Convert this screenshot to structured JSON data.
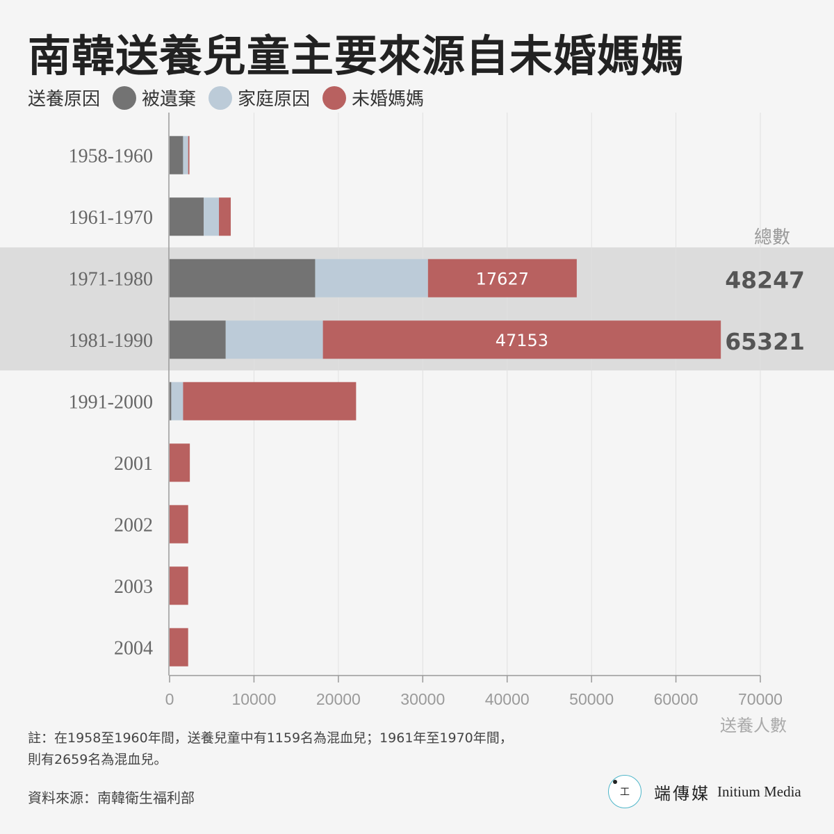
{
  "title": "南韓送養兒童主要來源自未婚媽媽",
  "legend": {
    "title": "送養原因",
    "items": [
      {
        "label": "被遺棄",
        "color": "#737373"
      },
      {
        "label": "家庭原因",
        "color": "#bccbd8"
      },
      {
        "label": "未婚媽媽",
        "color": "#b86160"
      }
    ]
  },
  "chart_data": {
    "type": "bar",
    "orientation": "horizontal",
    "stacked": true,
    "categories": [
      "1958-1960",
      "1961-1970",
      "1971-1980",
      "1981-1990",
      "1991-2000",
      "2001",
      "2002",
      "2003",
      "2004"
    ],
    "series": [
      {
        "name": "被遺棄",
        "color": "#737373",
        "values": [
          1600,
          4050,
          17250,
          6650,
          200,
          0,
          0,
          0,
          0
        ]
      },
      {
        "name": "家庭原因",
        "color": "#bccbd8",
        "values": [
          600,
          1800,
          13370,
          11518,
          1400,
          0,
          0,
          0,
          0
        ]
      },
      {
        "name": "未婚媽媽",
        "color": "#b86160",
        "values": [
          150,
          1400,
          17627,
          47153,
          20500,
          2400,
          2200,
          2200,
          2200
        ]
      }
    ],
    "highlight_categories": [
      "1971-1980",
      "1981-1990"
    ],
    "data_labels": {
      "1971-1980": "17627",
      "1981-1990": "47153"
    },
    "totals": {
      "label": "總數",
      "values": {
        "1971-1980": "48247",
        "1981-1990": "65321"
      }
    },
    "xlabel": "送養人數",
    "xlim": [
      0,
      70000
    ],
    "xticks": [
      0,
      10000,
      20000,
      30000,
      40000,
      50000,
      60000,
      70000
    ],
    "grid": true
  },
  "note": {
    "line1": "註：在1958至1960年間，送養兒童中有1159名為混血兒；1961年至1970年間，",
    "line2": "則有2659名為混血兒。"
  },
  "source": "資料來源：南韓衛生福利部",
  "brand": {
    "mark": "I 端",
    "name_cn": "端傳媒",
    "name_en": "Initium Media"
  }
}
